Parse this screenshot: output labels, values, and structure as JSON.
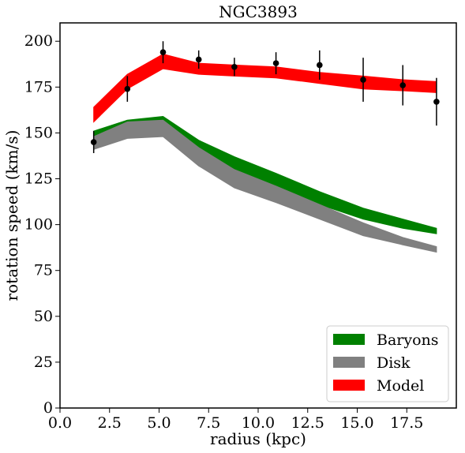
{
  "chart_data": {
    "type": "area",
    "title": "NGC3893",
    "xlabel": "radius (kpc)",
    "ylabel": "rotation speed (km/s)",
    "xlim": [
      0,
      20
    ],
    "ylim": [
      0,
      210
    ],
    "x_ticks": [
      0.0,
      2.5,
      5.0,
      7.5,
      10.0,
      12.5,
      15.0,
      17.5
    ],
    "x_tick_labels": [
      "0.0",
      "2.5",
      "5.0",
      "7.5",
      "10.0",
      "12.5",
      "15.0",
      "17.5"
    ],
    "y_ticks": [
      0,
      25,
      50,
      75,
      100,
      125,
      150,
      175,
      200
    ],
    "y_tick_labels": [
      "0",
      "25",
      "50",
      "75",
      "100",
      "125",
      "150",
      "175",
      "200"
    ],
    "grid": false,
    "legend_position": "bottom-right",
    "x": [
      1.7,
      3.4,
      5.2,
      7.0,
      8.8,
      10.9,
      13.1,
      15.3,
      17.3,
      19.0
    ],
    "series": [
      {
        "name": "Baryons",
        "color": "#008000",
        "upper": [
          151,
          157,
          159,
          146,
          137,
          128,
          118,
          109,
          103,
          98
        ],
        "lower": [
          142,
          148,
          150,
          139,
          129,
          120,
          111,
          103,
          98,
          95
        ]
      },
      {
        "name": "Disk",
        "color": "#808080",
        "upper": [
          148,
          156,
          157,
          142,
          130,
          121,
          111,
          101,
          93,
          88
        ],
        "lower": [
          141,
          147,
          148,
          132,
          120,
          112,
          103,
          94,
          89,
          85
        ]
      },
      {
        "name": "Model",
        "color": "#ff0000",
        "upper": [
          164,
          182,
          193,
          188,
          187,
          186,
          183,
          181,
          179,
          178
        ],
        "lower": [
          156,
          174,
          185,
          182,
          181,
          180,
          177,
          174,
          173,
          172
        ]
      }
    ],
    "observations": {
      "color": "#000000",
      "x": [
        1.7,
        3.4,
        5.2,
        7.0,
        8.8,
        10.9,
        13.1,
        15.3,
        17.3,
        19.0
      ],
      "y": [
        145,
        174,
        194,
        190,
        186,
        188,
        187,
        179,
        176,
        167
      ],
      "err": [
        6,
        7,
        6,
        5,
        5,
        6,
        8,
        12,
        11,
        13
      ]
    }
  }
}
